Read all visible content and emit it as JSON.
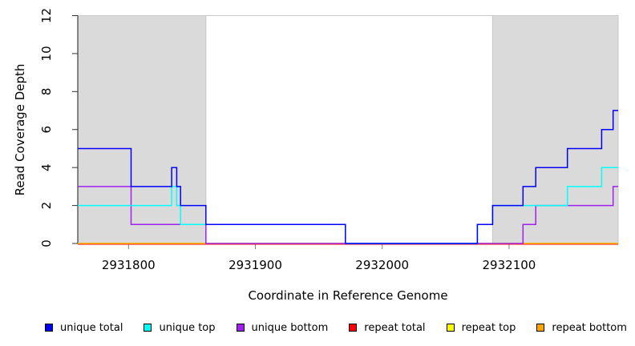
{
  "chart_data": {
    "type": "line",
    "subtype": "step-post-coverage",
    "title": "",
    "xlabel": "Coordinate in Reference Genome",
    "ylabel": "Read Coverage Depth",
    "xlim": [
      2931760,
      2932186
    ],
    "ylim": [
      0,
      12
    ],
    "x_ticks": [
      2931800,
      2931900,
      2932000,
      2932100
    ],
    "y_ticks": [
      0,
      2,
      4,
      6,
      8,
      10,
      12
    ],
    "x_end": 2932186,
    "grid": "off",
    "legend_position": "bottom",
    "shaded_regions": [
      {
        "name": "repeat-region-left",
        "x0": 2931760,
        "x1": 2931861,
        "fill": "#DADADA",
        "border": "#C6C6C6"
      },
      {
        "name": "repeat-region-right",
        "x0": 2932087,
        "x1": 2932186,
        "fill": "#DADADA",
        "border": "#C6C6C6"
      }
    ],
    "series": [
      {
        "name": "unique total",
        "color": "#0000FF",
        "steps": [
          [
            2931760,
            5
          ],
          [
            2931802,
            3
          ],
          [
            2931834,
            4
          ],
          [
            2931838,
            3
          ],
          [
            2931841,
            2
          ],
          [
            2931861,
            1
          ],
          [
            2931971,
            0
          ],
          [
            2932075,
            1
          ],
          [
            2932087,
            2
          ],
          [
            2932111,
            3
          ],
          [
            2932121,
            4
          ],
          [
            2932146,
            5
          ],
          [
            2932173,
            6
          ],
          [
            2932182,
            7
          ]
        ]
      },
      {
        "name": "unique top",
        "color": "#00FFFF",
        "steps": [
          [
            2931760,
            2
          ],
          [
            2931834,
            3
          ],
          [
            2931838,
            2
          ],
          [
            2931841,
            1
          ],
          [
            2931971,
            0
          ],
          [
            2932075,
            1
          ],
          [
            2932087,
            2
          ],
          [
            2932146,
            3
          ],
          [
            2932173,
            4
          ]
        ]
      },
      {
        "name": "unique bottom",
        "color": "#A020F0",
        "steps": [
          [
            2931760,
            3
          ],
          [
            2931802,
            1
          ],
          [
            2931861,
            0
          ],
          [
            2932111,
            1
          ],
          [
            2932121,
            2
          ],
          [
            2932182,
            3
          ]
        ]
      },
      {
        "name": "repeat total",
        "color": "#FF0000",
        "steps": [
          [
            2931760,
            0
          ]
        ]
      },
      {
        "name": "repeat top",
        "color": "#FFFF00",
        "steps": [
          [
            2931760,
            0
          ]
        ]
      },
      {
        "name": "repeat bottom",
        "color": "#FFA500",
        "steps": [
          [
            2931760,
            0
          ]
        ]
      }
    ],
    "legend": [
      {
        "label": "unique total",
        "color": "#0000FF"
      },
      {
        "label": "unique top",
        "color": "#00FFFF"
      },
      {
        "label": "unique bottom",
        "color": "#A020F0"
      },
      {
        "label": "repeat total",
        "color": "#FF0000"
      },
      {
        "label": "repeat top",
        "color": "#FFFF00"
      },
      {
        "label": "repeat bottom",
        "color": "#FFA500"
      }
    ]
  }
}
